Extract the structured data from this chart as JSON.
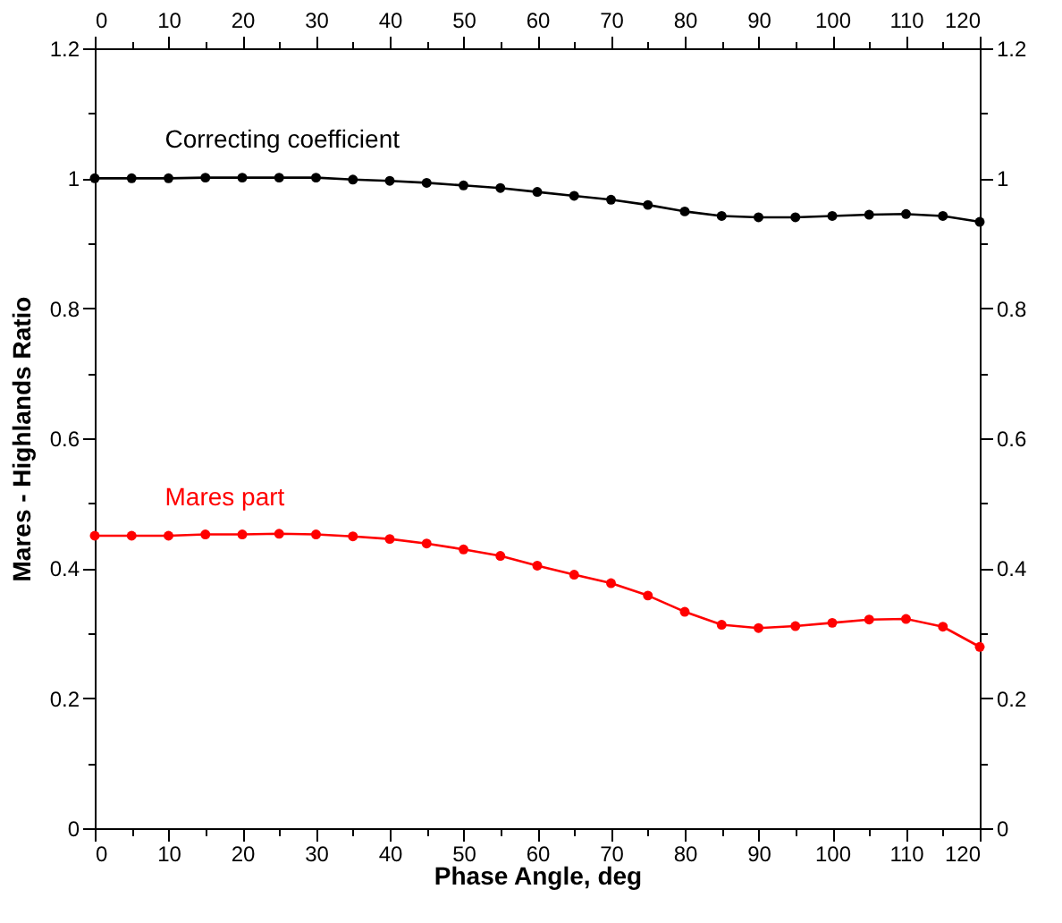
{
  "chart_data": {
    "type": "line",
    "xlabel": "Phase Angle, deg",
    "ylabel": "Mares - Highlands Ratio",
    "x": [
      0,
      5,
      10,
      15,
      20,
      25,
      30,
      35,
      40,
      45,
      50,
      55,
      60,
      65,
      70,
      75,
      80,
      85,
      90,
      95,
      100,
      105,
      110,
      115,
      120
    ],
    "series": [
      {
        "name": "Correcting coefficient",
        "color": "#000000",
        "values": [
          1.0,
          1.0,
          1.0,
          1.001,
          1.001,
          1.001,
          1.001,
          0.998,
          0.996,
          0.993,
          0.989,
          0.985,
          0.979,
          0.973,
          0.967,
          0.959,
          0.949,
          0.942,
          0.94,
          0.94,
          0.942,
          0.944,
          0.945,
          0.942,
          0.933
        ]
      },
      {
        "name": "Mares part",
        "color": "#ff0000",
        "values": [
          0.45,
          0.45,
          0.45,
          0.452,
          0.452,
          0.453,
          0.452,
          0.449,
          0.445,
          0.438,
          0.429,
          0.419,
          0.404,
          0.39,
          0.377,
          0.358,
          0.333,
          0.313,
          0.308,
          0.311,
          0.316,
          0.321,
          0.322,
          0.31,
          0.279
        ]
      }
    ],
    "xlim": [
      0,
      120
    ],
    "xticks": [
      0,
      10,
      20,
      30,
      40,
      50,
      60,
      70,
      80,
      90,
      100,
      110,
      120
    ],
    "x2lim": [
      0,
      120
    ],
    "x2ticks": [
      0,
      10,
      20,
      30,
      40,
      50,
      60,
      70,
      80,
      90,
      100,
      110,
      120
    ],
    "ylim": [
      0,
      1.2
    ],
    "yticks": [
      0,
      0.2,
      0.4,
      0.6,
      0.8,
      1,
      1.2
    ],
    "y2lim": [
      0,
      1.2
    ],
    "y2ticks": [
      0,
      0.2,
      0.4,
      0.6,
      0.8,
      1,
      1.2
    ],
    "marker": "circle",
    "line_style": "solid",
    "grid": false
  }
}
